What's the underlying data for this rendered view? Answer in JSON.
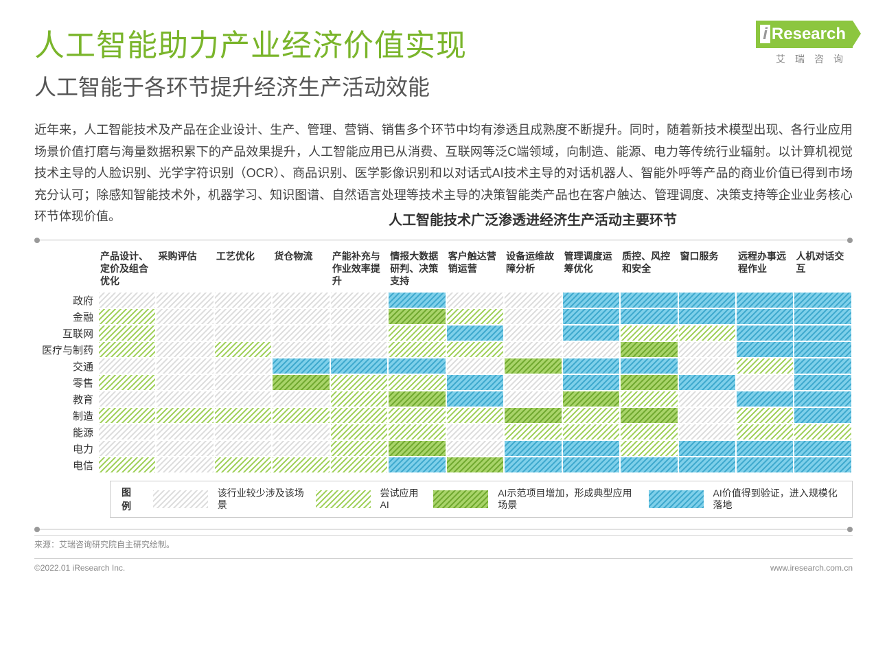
{
  "colors": {
    "title_green": "#7ab52b",
    "cell_l0_bg": "#ffffff",
    "cell_l0_stripe": "#dcdcdc",
    "cell_l1_bg": "#ffffff",
    "cell_l1_stripe": "#9dcf55",
    "cell_l2_bg": "#a9d46a",
    "cell_l2_stripe": "#6fa82e",
    "cell_l3_bg": "#7fd0ea",
    "cell_l3_stripe": "#3da8cd"
  },
  "header": {
    "main_title": "人工智能助力产业经济价值实现",
    "sub_title": "人工智能于各环节提升经济生产活动效能",
    "logo_text": "Research",
    "logo_sub": "艾瑞咨询"
  },
  "body_text": "近年来，人工智能技术及产品在企业设计、生产、管理、营销、销售多个环节中均有渗透且成熟度不断提升。同时，随着新技术模型出现、各行业应用场景价值打磨与海量数据积累下的产品效果提升，人工智能应用已从消费、互联网等泛C端领域，向制造、能源、电力等传统行业辐射。以计算机视觉技术主导的人脸识别、光学字符识别（OCR）、商品识别、医学影像识别和以对话式AI技术主导的对话机器人、智能外呼等产品的商业价值已得到市场充分认可；除感知智能技术外，机器学习、知识图谱、自然语言处理等技术主导的决策智能类产品也在客户触达、管理调度、决策支持等企业业务核心环节体现价值。",
  "chart_title": "人工智能技术广泛渗透进经济生产活动主要环节",
  "matrix": {
    "columns": [
      "产品设计、定价及组合优化",
      "采购评估",
      "工艺优化",
      "货仓物流",
      "产能补充与作业效率提升",
      "情报大数据研判、决策支持",
      "客户触达营销运营",
      "设备运维故障分析",
      "管理调度运筹优化",
      "质控、风控和安全",
      "窗口服务",
      "远程办事远程作业",
      "人机对话交互"
    ],
    "rows": [
      "政府",
      "金融",
      "互联网",
      "医疗与制药",
      "交通",
      "零售",
      "教育",
      "制造",
      "能源",
      "电力",
      "电信"
    ],
    "levels": [
      [
        0,
        0,
        0,
        0,
        0,
        3,
        0,
        0,
        3,
        3,
        3,
        3,
        3
      ],
      [
        1,
        0,
        0,
        0,
        0,
        2,
        1,
        0,
        3,
        3,
        3,
        3,
        3
      ],
      [
        1,
        0,
        0,
        0,
        0,
        1,
        3,
        0,
        3,
        1,
        1,
        3,
        3
      ],
      [
        1,
        0,
        1,
        0,
        0,
        1,
        1,
        0,
        0,
        2,
        0,
        3,
        3
      ],
      [
        0,
        0,
        0,
        3,
        3,
        3,
        0,
        2,
        3,
        3,
        0,
        1,
        3
      ],
      [
        1,
        0,
        0,
        2,
        1,
        1,
        3,
        0,
        3,
        2,
        3,
        0,
        3
      ],
      [
        0,
        0,
        0,
        0,
        1,
        2,
        3,
        0,
        2,
        1,
        0,
        3,
        3
      ],
      [
        1,
        1,
        1,
        1,
        1,
        1,
        1,
        2,
        1,
        2,
        0,
        1,
        3
      ],
      [
        0,
        0,
        0,
        0,
        1,
        1,
        0,
        1,
        1,
        1,
        0,
        1,
        1
      ],
      [
        0,
        0,
        0,
        0,
        1,
        2,
        0,
        3,
        3,
        1,
        3,
        3,
        3
      ],
      [
        1,
        0,
        1,
        1,
        1,
        3,
        2,
        3,
        3,
        3,
        3,
        3,
        3
      ]
    ]
  },
  "legend": {
    "label": "图例",
    "items": [
      {
        "level": 0,
        "text": "该行业较少涉及该场景"
      },
      {
        "level": 1,
        "text": "尝试应用AI"
      },
      {
        "level": 2,
        "text": "AI示范项目增加，形成典型应用场景"
      },
      {
        "level": 3,
        "text": "AI价值得到验证，进入规模化落地"
      }
    ]
  },
  "source": "来源：艾瑞咨询研究院自主研究绘制。",
  "footer": {
    "left": "©2022.01 iResearch Inc.",
    "right": "www.iresearch.com.cn"
  }
}
